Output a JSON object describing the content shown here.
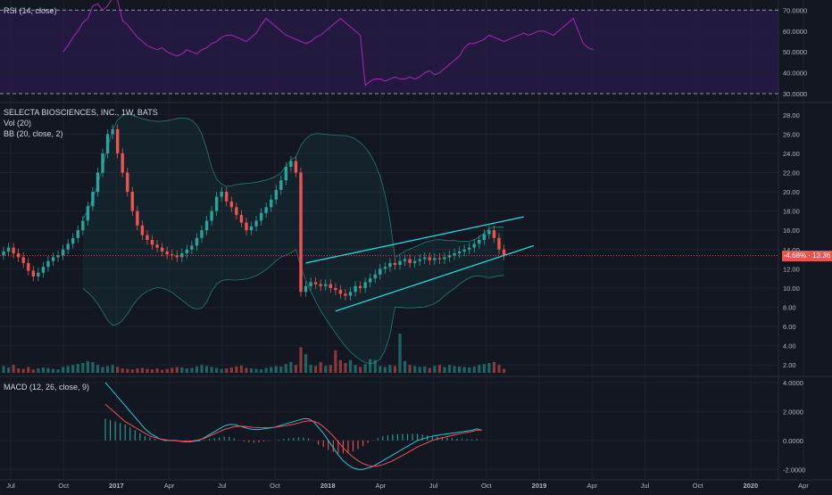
{
  "symbol_label": "SELECTA BIOSCIENCES, INC., 1W, BATS",
  "indicators": {
    "rsi_label": "RSI (14, close)",
    "vol_label": "Vol (20)",
    "bb_label": "BB (20, close, 2)",
    "macd_label": "MACD (12, 26, close, 9)"
  },
  "price_tag": "-4.68% · 13.36",
  "colors": {
    "background": "#131722",
    "up": "#26a69a",
    "down": "#ef5350",
    "rsi": "#9c27b0",
    "rsi_band": "#2a1a4a",
    "bb": "#26a69a",
    "channel": "#1de9e9",
    "macd": "#26c6da",
    "signal": "#ef5350",
    "grid": "#1e2230"
  },
  "chart_data": [
    {
      "type": "line",
      "name": "rsi",
      "title": "RSI (14, close)",
      "ylim": [
        27,
        74
      ],
      "y_ticks": [
        "70.0000",
        "60.0000",
        "50.0000",
        "40.0000",
        "30.0000"
      ],
      "y_tick_values": [
        70,
        60,
        50,
        40,
        30
      ],
      "bands": [
        30,
        70
      ],
      "values": [
        50,
        53,
        57,
        60,
        64,
        66,
        72,
        73,
        70,
        72,
        76,
        75,
        65,
        63,
        60,
        57,
        55,
        53,
        52,
        51,
        52,
        50,
        49,
        48,
        49,
        51,
        50,
        49,
        51,
        52,
        54,
        55,
        57,
        58,
        58,
        57,
        56,
        55,
        57,
        59,
        63,
        66,
        64,
        62,
        60,
        58,
        57,
        56,
        55,
        54,
        55,
        57,
        58,
        60,
        62,
        64,
        66,
        64,
        62,
        60,
        58,
        34,
        36,
        37,
        37,
        36,
        37,
        38,
        37,
        37,
        38,
        37,
        38,
        40,
        41,
        39,
        40,
        42,
        44,
        46,
        48,
        52,
        54,
        54,
        55,
        56,
        58,
        57,
        56,
        55,
        56,
        57,
        58,
        59,
        58,
        59,
        60,
        60,
        59,
        58,
        60,
        62,
        64,
        66,
        60,
        54,
        52,
        51
      ]
    },
    {
      "type": "bar",
      "name": "price",
      "title": "SELECTA BIOSCIENCES, INC., 1W, BATS",
      "ylim": [
        1,
        29
      ],
      "y_ticks": [
        "28.00",
        "26.00",
        "24.00",
        "22.00",
        "20.00",
        "18.00",
        "16.00",
        "14.00",
        "12.00",
        "10.00",
        "8.00",
        "6.00",
        "4.00",
        "2.00"
      ],
      "y_tick_values": [
        28,
        26,
        24,
        22,
        20,
        18,
        16,
        14,
        12,
        10,
        8,
        6,
        4,
        2
      ],
      "x_ticks": [
        "Jul",
        "Oct",
        "2017",
        "Apr",
        "Jul",
        "Oct",
        "2018",
        "Apr",
        "Jul",
        "Oct",
        "2019",
        "Apr",
        "Jul",
        "Oct",
        "2020",
        "Apr"
      ],
      "candles_close": [
        13.8,
        14.2,
        13.6,
        13.2,
        12.6,
        11.8,
        11.2,
        11.6,
        12.2,
        12.8,
        13.2,
        13.4,
        14,
        14.6,
        15.2,
        16,
        17,
        18.5,
        20,
        22,
        24,
        26,
        26.5,
        24,
        22,
        20,
        18,
        16.5,
        15.5,
        15,
        14.5,
        14.2,
        13.8,
        13.5,
        13.4,
        13.2,
        13.6,
        14,
        14.4,
        15.2,
        16,
        17,
        18,
        19.5,
        20,
        19,
        18.4,
        17.6,
        16.8,
        16,
        16.4,
        17,
        17.8,
        18.4,
        19.2,
        20.2,
        21.2,
        22.6,
        23.2,
        22,
        9.6,
        10.2,
        10.6,
        10.4,
        10.2,
        10.4,
        10,
        9.8,
        9.4,
        9.2,
        9.6,
        10.2,
        10,
        10.6,
        11,
        11.4,
        12,
        12.2,
        12.6,
        12.4,
        12.8,
        13,
        12.6,
        12.8,
        13,
        13.2,
        12.9,
        13.1,
        13,
        13.2,
        13.4,
        13.6,
        13.8,
        14,
        14.2,
        14.6,
        15,
        15.6,
        16,
        15.2,
        14,
        13.4
      ],
      "volume": [
        1.4,
        1.1,
        1.6,
        0.9,
        0.8,
        1.2,
        0.7,
        0.9,
        1.1,
        1,
        0.8,
        0.7,
        1.2,
        1.4,
        1.6,
        1.8,
        2,
        2.4,
        2.2,
        1.6,
        1.2,
        1.4,
        1.6,
        1.2,
        0.9,
        0.8,
        0.7,
        0.9,
        1,
        0.8,
        0.7,
        0.9,
        0.6,
        0.8,
        1,
        1.2,
        1.1,
        0.9,
        1,
        1.3,
        1.6,
        1.4,
        1.2,
        1,
        0.8,
        0.9,
        1.1,
        1.3,
        1.5,
        1,
        0.9,
        0.8,
        0.7,
        1,
        1.2,
        1.4,
        1.3,
        1.8,
        2.2,
        1.6,
        5.2,
        3.8,
        1.6,
        1.4,
        2.2,
        1.4,
        1.6,
        4.6,
        2.6,
        2,
        2.6,
        1.6,
        1.2,
        1.8,
        2.8,
        2.6,
        1.4,
        1.2,
        1.6,
        1.4,
        8,
        2.4,
        1.6,
        1.4,
        1.2,
        1.3,
        1,
        1.4,
        1.6,
        1.2,
        1.6,
        1.4,
        1.3,
        1.2,
        1.1,
        1.3,
        1.6,
        1.8,
        2,
        2.2,
        1.6,
        0.8
      ],
      "bb_upper_peaks": [
        26.5,
        25.8,
        25,
        24.2,
        17.2,
        16.6
      ],
      "channel_upper": [
        [
          61,
          12.6
        ],
        [
          105,
          17.4
        ]
      ],
      "channel_lower": [
        [
          67,
          7.6
        ],
        [
          107,
          14.4
        ]
      ]
    },
    {
      "type": "line",
      "name": "macd",
      "title": "MACD (12, 26, close, 9)",
      "ylim": [
        -2.6,
        4.3
      ],
      "y_ticks": [
        "4.0000",
        "2.0000",
        "0.0000",
        "-2.0000"
      ],
      "y_tick_values": [
        4,
        2,
        0,
        -2
      ],
      "macd": [
        4,
        3.6,
        3.2,
        2.8,
        2.4,
        2,
        1.6,
        1.2,
        0.8,
        0.5,
        0.3,
        0.1,
        0,
        0,
        0,
        -0.05,
        -0.1,
        -0.1,
        -0.05,
        0,
        0.2,
        0.4,
        0.6,
        0.8,
        1,
        1.1,
        1.1,
        1,
        0.9,
        0.8,
        0.75,
        0.75,
        0.8,
        0.85,
        0.9,
        1,
        1.1,
        1.2,
        1.3,
        1.4,
        1.5,
        1.5,
        1.3,
        0.9,
        0.5,
        0,
        -0.5,
        -1,
        -1.4,
        -1.7,
        -1.9,
        -2,
        -2,
        -1.9,
        -1.8,
        -1.6,
        -1.4,
        -1.2,
        -1,
        -0.8,
        -0.6,
        -0.4,
        -0.2,
        0,
        0.1,
        0.2,
        0.3,
        0.35,
        0.4,
        0.45,
        0.5,
        0.55,
        0.6,
        0.65,
        0.7,
        0.8,
        0.7
      ],
      "signal": [
        2.5,
        2.2,
        1.9,
        1.6,
        1.3,
        1.1,
        0.9,
        0.7,
        0.5,
        0.3,
        0.2,
        0.1,
        0.05,
        0,
        -0.02,
        -0.04,
        -0.06,
        -0.05,
        -0.02,
        0.05,
        0.15,
        0.3,
        0.45,
        0.6,
        0.75,
        0.85,
        0.95,
        0.98,
        0.97,
        0.93,
        0.9,
        0.88,
        0.87,
        0.88,
        0.9,
        0.95,
        1,
        1.05,
        1.12,
        1.2,
        1.3,
        1.35,
        1.32,
        1.2,
        0.95,
        0.65,
        0.3,
        -0.1,
        -0.5,
        -0.85,
        -1.15,
        -1.4,
        -1.6,
        -1.72,
        -1.78,
        -1.76,
        -1.68,
        -1.55,
        -1.4,
        -1.22,
        -1.04,
        -0.85,
        -0.65,
        -0.45,
        -0.3,
        -0.15,
        0,
        0.1,
        0.18,
        0.26,
        0.34,
        0.42,
        0.5,
        0.56,
        0.62,
        0.7,
        0.72
      ]
    }
  ]
}
